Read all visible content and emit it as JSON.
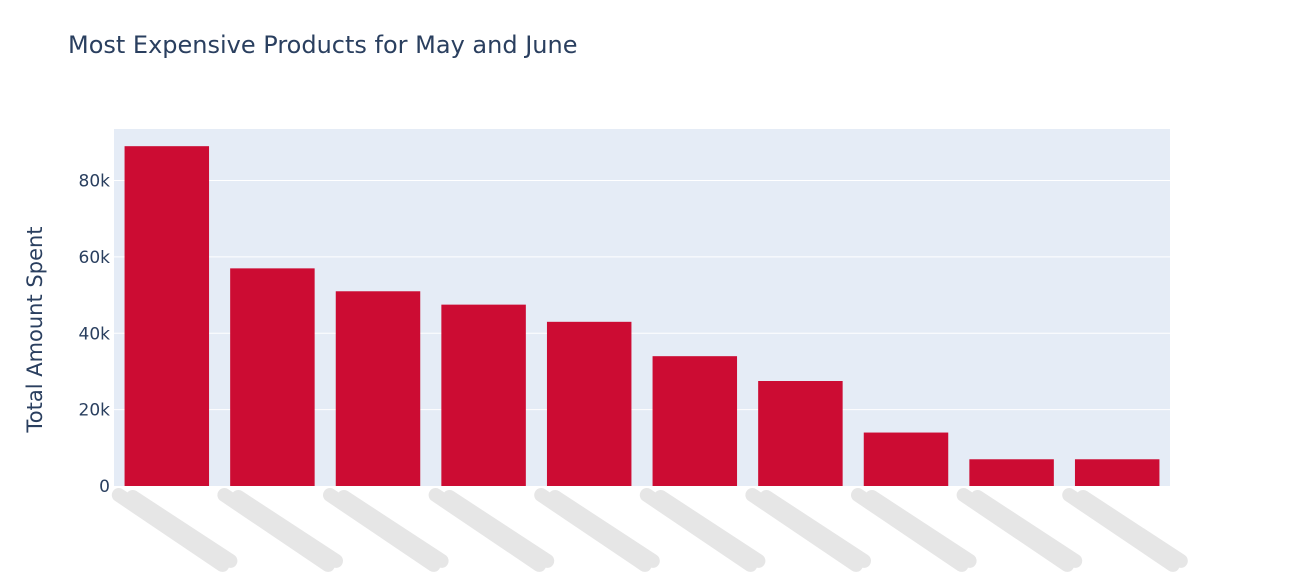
{
  "chart_data": {
    "type": "bar",
    "title": "Most Expensive Products for May and June",
    "xlabel": "",
    "ylabel": "Total Amount Spent",
    "categories": [
      "",
      "",
      "",
      "",
      "",
      "",
      "",
      "",
      "",
      ""
    ],
    "values": [
      89000,
      57000,
      51000,
      47500,
      43000,
      34000,
      27500,
      14000,
      7000,
      7000
    ],
    "ylim": [
      0,
      93500
    ],
    "yticks": [
      0,
      20000,
      40000,
      60000,
      80000
    ],
    "ytick_labels": [
      "0",
      "20k",
      "40k",
      "60k",
      "80k"
    ],
    "grid": true,
    "bar_color": "#cc0c33",
    "plot_bg": "#e5ecf6",
    "text_color": "#2a3f5f",
    "redaction_color": "#e6e6e6"
  }
}
